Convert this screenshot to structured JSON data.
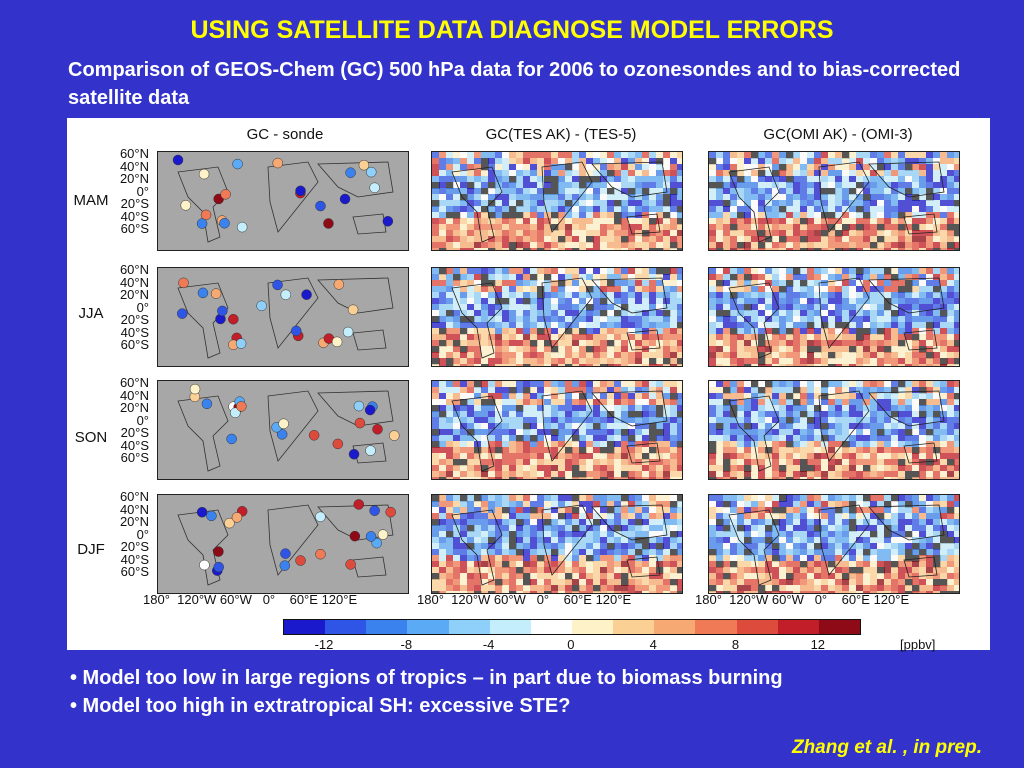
{
  "title": "USING SATELLITE DATA DIAGNOSE MODEL ERRORS",
  "subtitle": "Comparison of GEOS-Chem (GC) 500 hPa data for 2006 to ozonesondes and to bias-corrected satellite data",
  "figure": {
    "column_titles": [
      "GC - sonde",
      "GC(TES AK) - (TES-5)",
      "GC(OMI AK) - (OMI-3)"
    ],
    "row_labels": [
      "MAM",
      "JJA",
      "SON",
      "DJF"
    ],
    "lat_ticks": [
      "60°N",
      "40°N",
      "20°N",
      "0°",
      "20°S",
      "40°S",
      "60°S"
    ],
    "lon_ticks": [
      "180°",
      "120°W",
      "60°W",
      "0°",
      "60°E",
      "120°E"
    ],
    "colorbar": {
      "colors": [
        "#1a1acc",
        "#2e55e6",
        "#3a82ee",
        "#5aaaf5",
        "#8fd0fb",
        "#c5eefd",
        "#ffffff",
        "#fdf2c8",
        "#fbd094",
        "#f7a973",
        "#ef7a55",
        "#dd4b3d",
        "#c21e2a",
        "#8e0a16"
      ],
      "tick_labels": [
        "-12",
        "-8",
        "-4",
        "0",
        "4",
        "8",
        "12"
      ],
      "unit": "[ppbv]"
    }
  },
  "bullets": [
    "• Model too low in large regions of tropics – in part due to biomass burning",
    "• Model too high in extratropical SH: excessive STE?"
  ],
  "citation": "Zhang et al. , in prep."
}
